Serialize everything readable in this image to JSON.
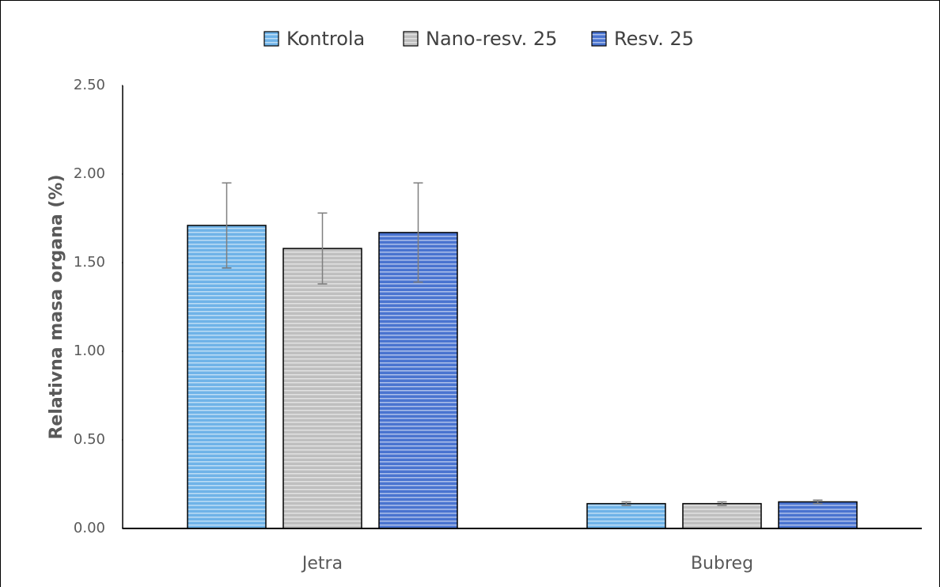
{
  "chart_data": {
    "type": "bar",
    "y_label": "Relativna masa organa (%)",
    "categories": [
      "Jetra",
      "Bubreg"
    ],
    "series": [
      {
        "name": "Kontrola",
        "color": "#6fb3e8",
        "values": [
          1.71,
          0.14
        ],
        "errors": [
          0.24,
          0.01
        ]
      },
      {
        "name": "Nano-resv. 25",
        "color": "#bfbfbf",
        "values": [
          1.58,
          0.14
        ],
        "errors": [
          0.2,
          0.01
        ]
      },
      {
        "name": "Resv. 25",
        "color": "#4a74d0",
        "values": [
          1.67,
          0.15
        ],
        "errors": [
          0.28,
          0.01
        ]
      }
    ],
    "ylim": [
      0,
      2.5
    ],
    "yticks": [
      {
        "value": 0,
        "label": "0.00"
      },
      {
        "value": 0.5,
        "label": "0.50"
      },
      {
        "value": 1,
        "label": "1.00"
      },
      {
        "value": 1.5,
        "label": "1.50"
      },
      {
        "value": 2,
        "label": "2.00"
      },
      {
        "value": 2.5,
        "label": "2.50"
      }
    ],
    "legend": "top"
  }
}
